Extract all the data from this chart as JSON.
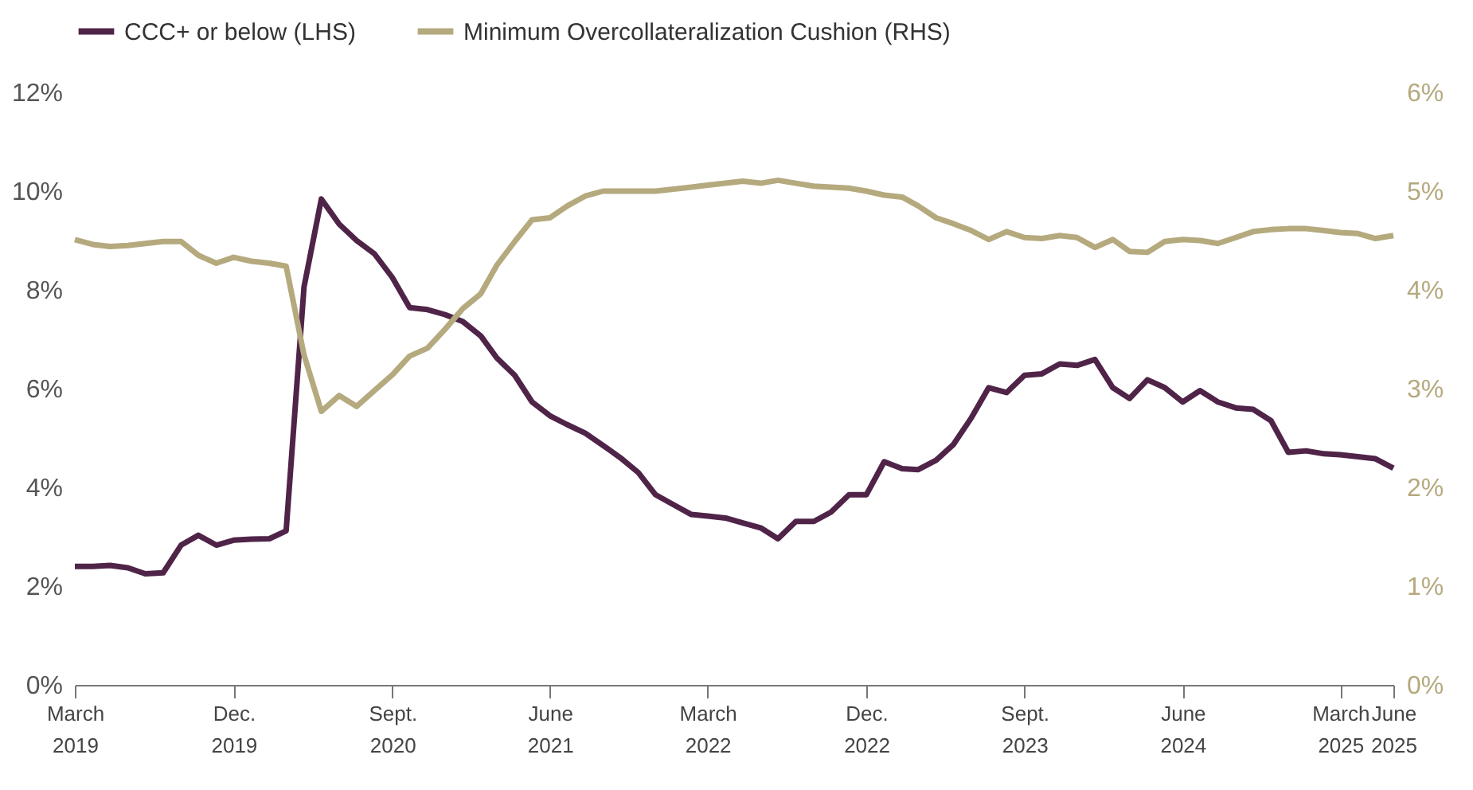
{
  "chart_data": {
    "type": "line",
    "x": [
      "2019-03",
      "2019-04",
      "2019-05",
      "2019-06",
      "2019-07",
      "2019-08",
      "2019-09",
      "2019-10",
      "2019-11",
      "2019-12",
      "2020-01",
      "2020-02",
      "2020-03",
      "2020-04",
      "2020-05",
      "2020-06",
      "2020-07",
      "2020-08",
      "2020-09",
      "2020-10",
      "2020-11",
      "2020-12",
      "2021-01",
      "2021-02",
      "2021-03",
      "2021-04",
      "2021-05",
      "2021-06",
      "2021-07",
      "2021-08",
      "2021-09",
      "2021-10",
      "2021-11",
      "2021-12",
      "2022-01",
      "2022-02",
      "2022-03",
      "2022-04",
      "2022-05",
      "2022-06",
      "2022-07",
      "2022-08",
      "2022-09",
      "2022-10",
      "2022-11",
      "2022-12",
      "2023-01",
      "2023-02",
      "2023-03",
      "2023-04",
      "2023-05",
      "2023-06",
      "2023-07",
      "2023-08",
      "2023-09",
      "2023-10",
      "2023-11",
      "2023-12",
      "2024-01",
      "2024-02",
      "2024-03",
      "2024-04",
      "2024-05",
      "2024-06",
      "2024-07",
      "2024-08",
      "2024-09",
      "2024-10",
      "2024-11",
      "2024-12",
      "2025-01",
      "2025-02",
      "2025-03",
      "2025-04",
      "2025-05",
      "2025-06"
    ],
    "series": [
      {
        "name": "CCC+ or below (LHS)",
        "color": "#4f2448",
        "values": [
          2.4,
          2.4,
          2.42,
          2.37,
          2.25,
          2.27,
          2.83,
          3.03,
          2.83,
          2.93,
          2.95,
          2.96,
          3.12,
          8.06,
          9.84,
          9.33,
          9.0,
          8.73,
          8.25,
          7.64,
          7.6,
          7.5,
          7.36,
          7.07,
          6.62,
          6.27,
          5.73,
          5.45,
          5.27,
          5.1,
          4.85,
          4.6,
          4.3,
          3.85,
          3.65,
          3.45,
          3.42,
          3.38,
          3.28,
          3.18,
          2.96,
          3.31,
          3.31,
          3.5,
          3.85,
          3.85,
          4.52,
          4.38,
          4.36,
          4.55,
          4.87,
          5.41,
          6.02,
          5.92,
          6.27,
          6.3,
          6.5,
          6.47,
          6.59,
          6.02,
          5.8,
          6.18,
          6.02,
          5.73,
          5.96,
          5.73,
          5.61,
          5.58,
          5.35,
          4.71,
          4.74,
          4.68,
          4.66,
          4.62,
          4.58,
          4.39
        ]
      },
      {
        "name": "Minimum Overcollateralization Cushion (RHS)",
        "color": "#b5a97e",
        "axis": "y2",
        "values": [
          4.51,
          4.46,
          4.44,
          4.45,
          4.47,
          4.49,
          4.49,
          4.35,
          4.27,
          4.33,
          4.29,
          4.27,
          4.24,
          3.34,
          2.77,
          2.93,
          2.82,
          2.98,
          3.14,
          3.33,
          3.41,
          3.6,
          3.81,
          3.96,
          4.25,
          4.49,
          4.71,
          4.73,
          4.85,
          4.95,
          5.0,
          5.0,
          5.0,
          5.0,
          5.02,
          5.04,
          5.06,
          5.08,
          5.1,
          5.08,
          5.11,
          5.08,
          5.05,
          5.04,
          5.03,
          5.0,
          4.96,
          4.94,
          4.85,
          4.73,
          4.67,
          4.6,
          4.51,
          4.59,
          4.53,
          4.52,
          4.55,
          4.53,
          4.43,
          4.51,
          4.39,
          4.38,
          4.49,
          4.51,
          4.5,
          4.47,
          4.53,
          4.59,
          4.61,
          4.62,
          4.62,
          4.6,
          4.58,
          4.57,
          4.52,
          4.55
        ]
      }
    ],
    "xlim": [
      "2019-03",
      "2025-06"
    ],
    "xticks": [
      {
        "value": "2019-03",
        "label": "March 2019"
      },
      {
        "value": "2019-12",
        "label": "Dec. 2019"
      },
      {
        "value": "2020-09",
        "label": "Sept. 2020"
      },
      {
        "value": "2021-06",
        "label": "June 2021"
      },
      {
        "value": "2022-03",
        "label": "March 2022"
      },
      {
        "value": "2022-12",
        "label": "Dec. 2022"
      },
      {
        "value": "2023-09",
        "label": "Sept. 2023"
      },
      {
        "value": "2024-06",
        "label": "June 2024"
      },
      {
        "value": "2025-03",
        "label": "March 2025"
      },
      {
        "value": "2025-06",
        "label": "June 2025"
      }
    ],
    "ylim": [
      0,
      12
    ],
    "yticks": [
      {
        "value": 0,
        "label": "0%"
      },
      {
        "value": 2,
        "label": "2%"
      },
      {
        "value": 4,
        "label": "4%"
      },
      {
        "value": 6,
        "label": "6%"
      },
      {
        "value": 8,
        "label": "8%"
      },
      {
        "value": 10,
        "label": "10%"
      },
      {
        "value": 12,
        "label": "12%"
      }
    ],
    "y2lim": [
      0,
      6
    ],
    "y2ticks": [
      {
        "value": 0,
        "label": "0%"
      },
      {
        "value": 1,
        "label": "1%"
      },
      {
        "value": 2,
        "label": "2%"
      },
      {
        "value": 3,
        "label": "3%"
      },
      {
        "value": 4,
        "label": "4%"
      },
      {
        "value": 5,
        "label": "5%"
      },
      {
        "value": 6,
        "label": "6%"
      }
    ],
    "legend": "top left",
    "grid": false,
    "line_style": "solid",
    "marker": "none"
  }
}
